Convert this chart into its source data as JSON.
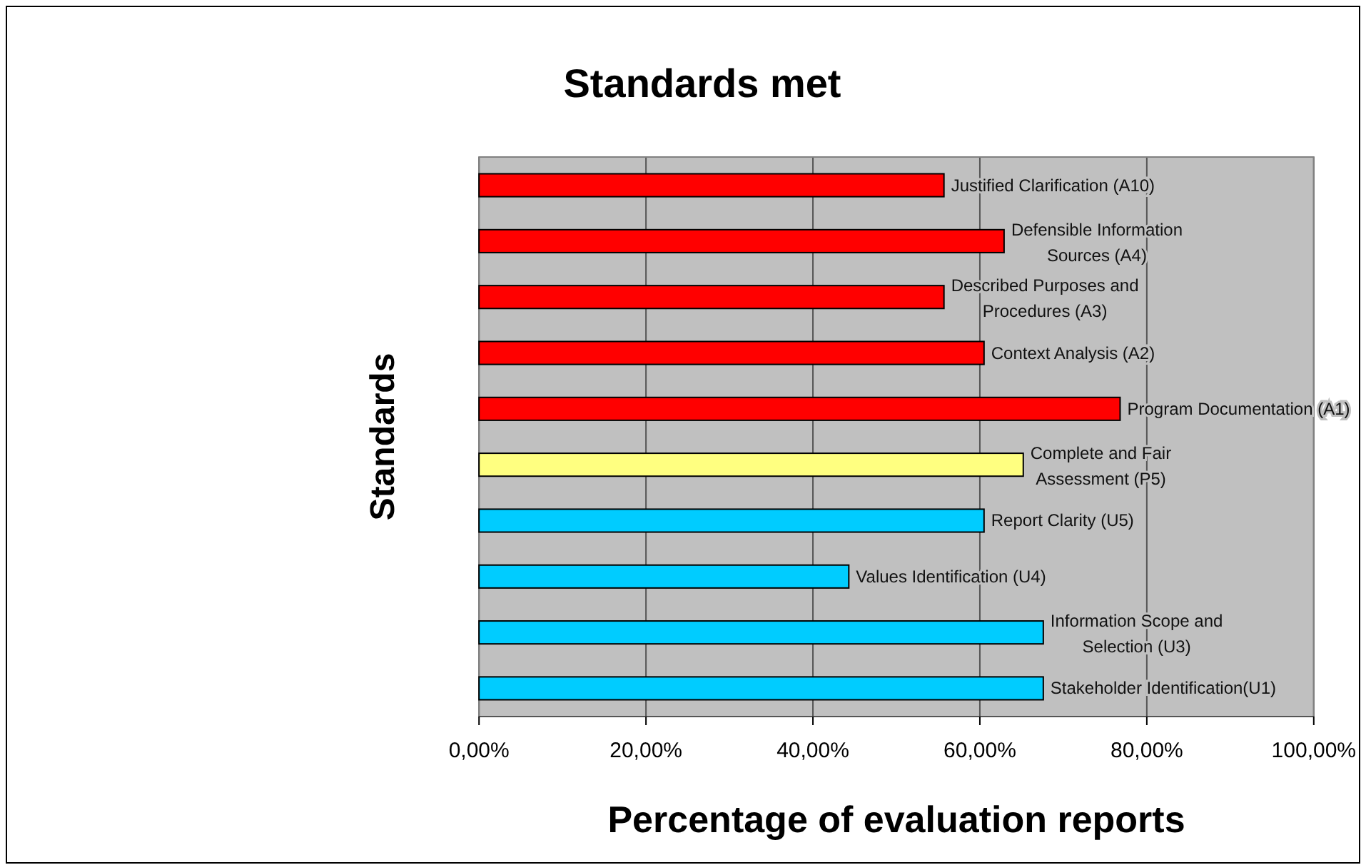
{
  "chart_data": {
    "type": "bar",
    "orientation": "horizontal",
    "title": "Standards met",
    "xlabel": "Percentage of evaluation reports",
    "ylabel": "Standards",
    "categories": [
      "Justified Clarification (A10)",
      "Defensible Information Sources (A4)",
      "Described Purposes and Procedures (A3)",
      "Context Analysis (A2)",
      "Program Documentation (A1)",
      "Complete and Fair Assessment (P5)",
      "Report Clarity (U5)",
      "Values Identification (U4)",
      "Information Scope and Selection (U3)",
      "Stakeholder Identification(U1)"
    ],
    "values": [
      55.7,
      62.9,
      55.7,
      60.5,
      76.8,
      65.2,
      60.5,
      44.3,
      67.6,
      67.6
    ],
    "colors": [
      "#ff0000",
      "#ff0000",
      "#ff0000",
      "#ff0000",
      "#ff0000",
      "#ffff80",
      "#00ccff",
      "#00ccff",
      "#00ccff",
      "#00ccff"
    ],
    "xlim": [
      0,
      100
    ],
    "xticks": [
      {
        "value": 0,
        "label": "0,00%"
      },
      {
        "value": 20,
        "label": "20,00%"
      },
      {
        "value": 40,
        "label": "40,00%"
      },
      {
        "value": 60,
        "label": "60,00%"
      },
      {
        "value": 80,
        "label": "80,00%"
      },
      {
        "value": 100,
        "label": "100,00%"
      }
    ],
    "grid": "x"
  }
}
